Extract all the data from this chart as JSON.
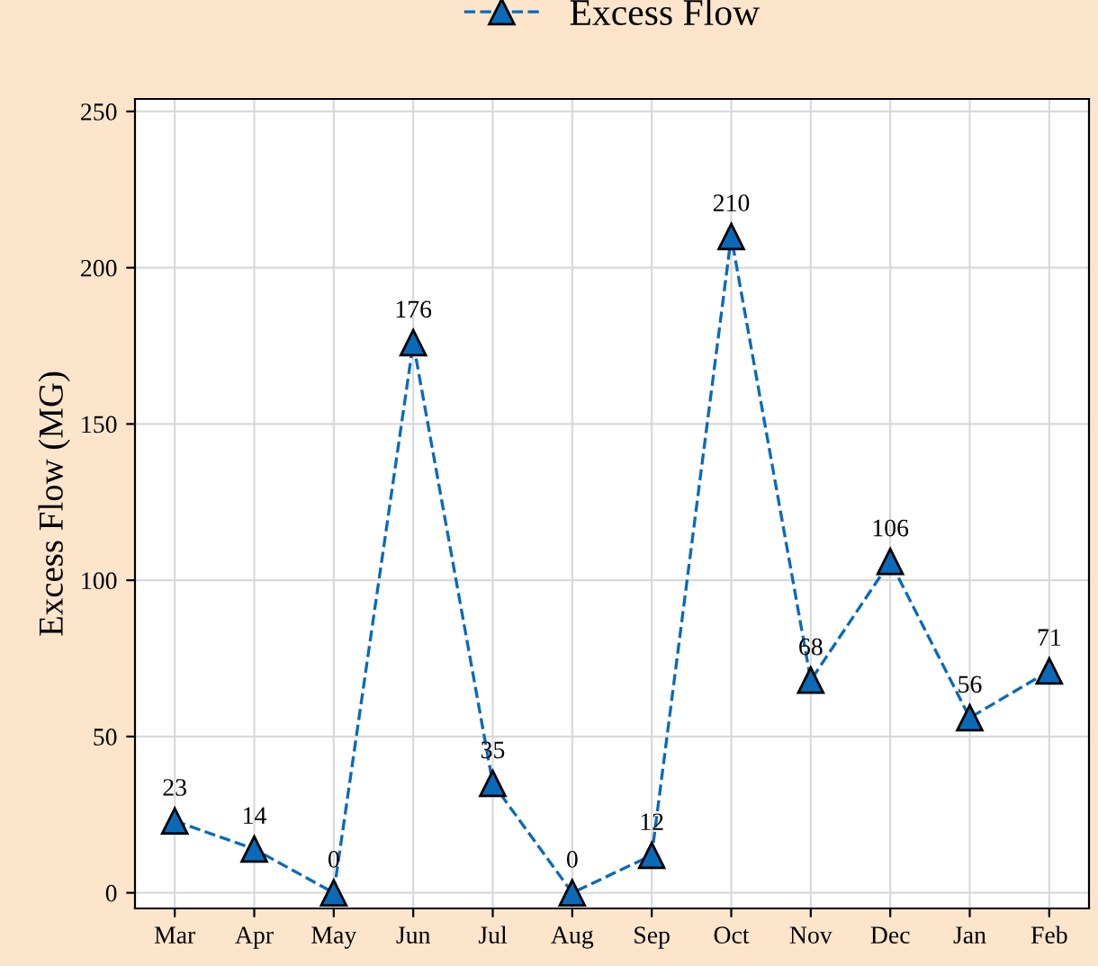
{
  "chart_data": {
    "type": "line",
    "ylabel": "Excess Flow (MG)",
    "categories": [
      "Mar",
      "Apr",
      "May",
      "Jun",
      "Jul",
      "Aug",
      "Sep",
      "Oct",
      "Nov",
      "Dec",
      "Jan",
      "Feb"
    ],
    "series": [
      {
        "name": "Excess Flow",
        "color": "#0a6ab8",
        "values": [
          23,
          14,
          0,
          176,
          35,
          0,
          12,
          210,
          68,
          106,
          56,
          71
        ]
      }
    ],
    "ylim": [
      -5,
      254
    ],
    "yticks": [
      0,
      50,
      100,
      150,
      200,
      250
    ],
    "grid": true,
    "legend": "top",
    "marker": "triangle",
    "line_style": "dashed",
    "data_labels": true
  }
}
